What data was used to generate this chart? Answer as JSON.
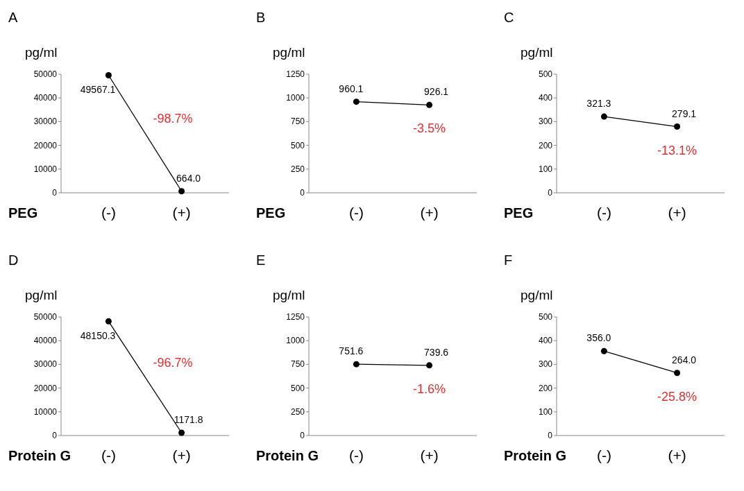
{
  "chart_data": [
    {
      "type": "line",
      "title": "A",
      "ylabel": "pg/ml",
      "xlabel": "PEG",
      "categories": [
        "(-)",
        "(+)"
      ],
      "series": [
        {
          "color": "#000000",
          "values": [
            49567.1,
            664.0
          ],
          "value_labels": [
            "49567.1",
            "664.0"
          ]
        }
      ],
      "ylim": [
        0,
        50000
      ],
      "yticks": [
        0,
        10000,
        20000,
        30000,
        40000,
        50000
      ],
      "marker": "circle",
      "annotations": [
        "-98.7%"
      ]
    },
    {
      "type": "line",
      "title": "B",
      "ylabel": "pg/ml",
      "xlabel": "PEG",
      "categories": [
        "(-)",
        "(+)"
      ],
      "series": [
        {
          "color": "#000000",
          "values": [
            960.1,
            926.1
          ],
          "value_labels": [
            "960.1",
            "926.1"
          ]
        }
      ],
      "ylim": [
        0,
        1250
      ],
      "yticks": [
        0,
        250,
        500,
        750,
        1000,
        1250
      ],
      "marker": "circle",
      "annotations": [
        "-3.5%"
      ]
    },
    {
      "type": "line",
      "title": "C",
      "ylabel": "pg/ml",
      "xlabel": "PEG",
      "categories": [
        "(-)",
        "(+)"
      ],
      "series": [
        {
          "color": "#000000",
          "values": [
            321.3,
            279.1
          ],
          "value_labels": [
            "321.3",
            "279.1"
          ]
        }
      ],
      "ylim": [
        0,
        500
      ],
      "yticks": [
        0,
        100,
        200,
        300,
        400,
        500
      ],
      "marker": "circle",
      "annotations": [
        "-13.1%"
      ]
    },
    {
      "type": "line",
      "title": "D",
      "ylabel": "pg/ml",
      "xlabel": "Protein G",
      "categories": [
        "(-)",
        "(+)"
      ],
      "series": [
        {
          "color": "#000000",
          "values": [
            48150.3,
            1171.8
          ],
          "value_labels": [
            "48150.3",
            "1171.8"
          ]
        }
      ],
      "ylim": [
        0,
        50000
      ],
      "yticks": [
        0,
        10000,
        20000,
        30000,
        40000,
        50000
      ],
      "marker": "circle",
      "annotations": [
        "-96.7%"
      ]
    },
    {
      "type": "line",
      "title": "E",
      "ylabel": "pg/ml",
      "xlabel": "Protein G",
      "categories": [
        "(-)",
        "(+)"
      ],
      "series": [
        {
          "color": "#000000",
          "values": [
            751.6,
            739.6
          ],
          "value_labels": [
            "751.6",
            "739.6"
          ]
        }
      ],
      "ylim": [
        0,
        1250
      ],
      "yticks": [
        0,
        250,
        500,
        750,
        1000,
        1250
      ],
      "marker": "circle",
      "annotations": [
        "-1.6%"
      ]
    },
    {
      "type": "line",
      "title": "F",
      "ylabel": "pg/ml",
      "xlabel": "Protein G",
      "categories": [
        "(-)",
        "(+)"
      ],
      "series": [
        {
          "color": "#000000",
          "values": [
            356.0,
            264.0
          ],
          "value_labels": [
            "356.0",
            "264.0"
          ]
        }
      ],
      "ylim": [
        0,
        500
      ],
      "yticks": [
        0,
        100,
        200,
        300,
        400,
        500
      ],
      "marker": "circle",
      "annotations": [
        "-25.8%"
      ]
    }
  ]
}
